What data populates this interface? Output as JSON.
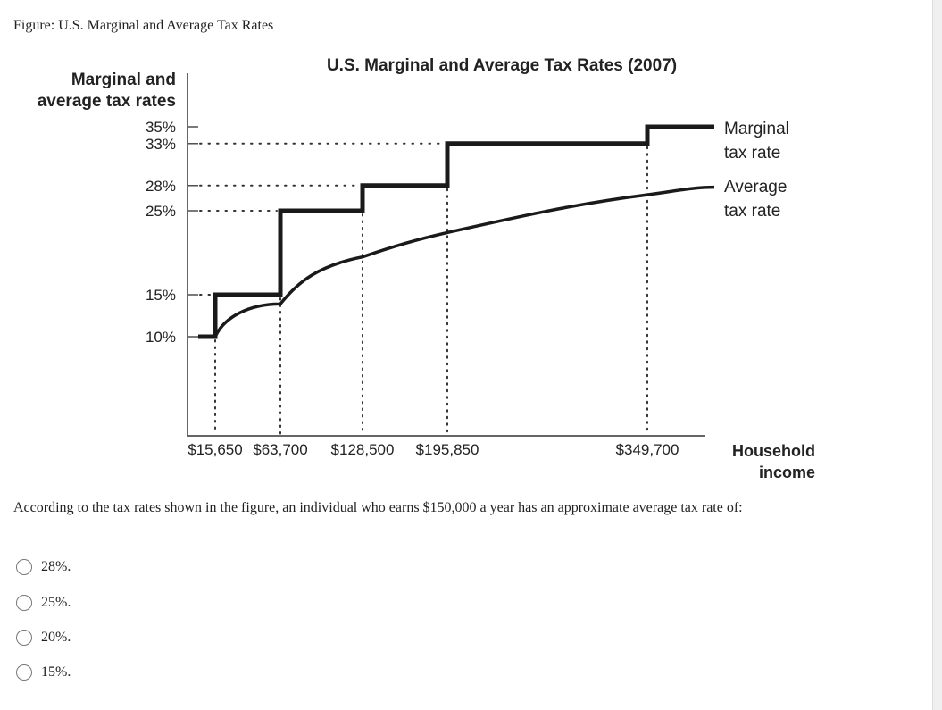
{
  "figure_caption": "Figure: U.S. Marginal and Average Tax Rates",
  "question": "According to the tax rates shown in the figure, an individual who earns $150,000 a year has an approximate average tax rate of:",
  "options": [
    "28%.",
    "25%.",
    "20%.",
    "15%."
  ],
  "chart_data": {
    "type": "line",
    "title": "U.S. Marginal and Average Tax Rates (2007)",
    "ylabel_lines": [
      "Marginal and",
      "average tax rates"
    ],
    "xlabel_lines": [
      "Household",
      "income"
    ],
    "x_ticks": [
      15650,
      63700,
      128500,
      195850,
      349700
    ],
    "x_tick_labels": [
      "$15,650",
      "$63,700",
      "$128,500",
      "$195,850",
      "$349,700"
    ],
    "y_ticks": [
      35,
      33,
      28,
      25,
      15,
      10
    ],
    "y_tick_labels": [
      "35%",
      "33%",
      "28%",
      "25%",
      "15%",
      "10%"
    ],
    "grid": "dotted guide lines at bracket thresholds",
    "legend": "inline labels at right end of lines",
    "series": [
      {
        "name": "Marginal tax rate",
        "label_lines": [
          "Marginal",
          "tax rate"
        ],
        "kind": "step",
        "x": [
          0,
          15650,
          63700,
          128500,
          195850,
          349700
        ],
        "y": [
          10,
          15,
          25,
          28,
          33,
          35
        ]
      },
      {
        "name": "Average tax rate",
        "label_lines": [
          "Average",
          "tax rate"
        ],
        "kind": "curve",
        "x": [
          15650,
          63700,
          128500,
          195850,
          349700
        ],
        "y": [
          10,
          13.9,
          19.5,
          22.4,
          26.9
        ]
      }
    ],
    "colors": {
      "line": "#1a1a1a",
      "text": "#222222"
    }
  }
}
